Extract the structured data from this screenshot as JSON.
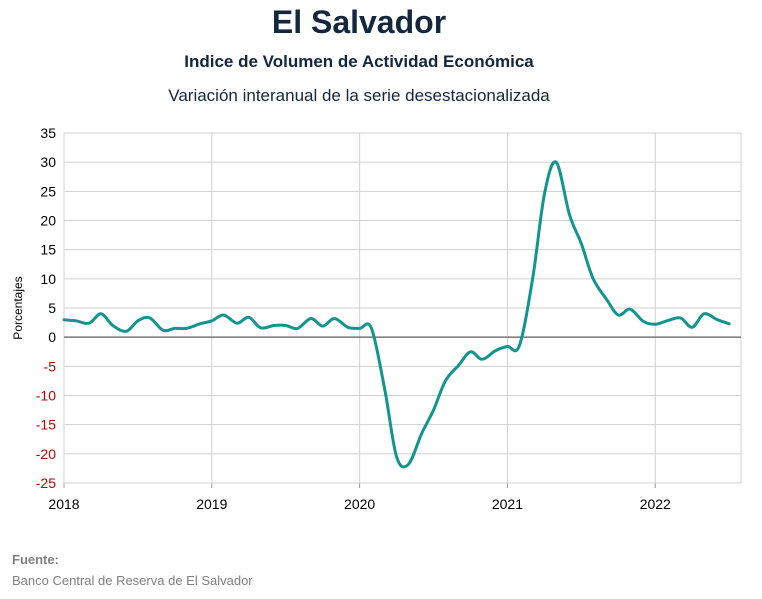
{
  "chart_data": {
    "type": "line",
    "title": "El Salvador",
    "subtitle": "Indice de Volumen de  Actividad Económica",
    "subtitle2": "Variación interanual de la serie desestacionalizada",
    "ylabel": "Porcentajes",
    "xlabel": "",
    "ylim": [
      -25,
      35
    ],
    "yticks": [
      35,
      30,
      25,
      20,
      15,
      10,
      5,
      0,
      -5,
      -10,
      -15,
      -20,
      -25
    ],
    "xticks": [
      "2018",
      "2019",
      "2020",
      "2021",
      "2022"
    ],
    "xlim": [
      2018,
      2022.58
    ],
    "grid": true,
    "line_color": "#13958f",
    "negative_tick_color": "#c00000",
    "series": [
      {
        "x": [
          2018.0,
          2018.08,
          2018.17,
          2018.25,
          2018.33,
          2018.42,
          2018.5,
          2018.58,
          2018.67,
          2018.75,
          2018.83,
          2018.92,
          2019.0,
          2019.08,
          2019.17,
          2019.25,
          2019.33,
          2019.42,
          2019.5,
          2019.58,
          2019.67,
          2019.75,
          2019.83,
          2019.92,
          2020.0,
          2020.08,
          2020.17,
          2020.25,
          2020.33,
          2020.42,
          2020.5,
          2020.58,
          2020.67,
          2020.75,
          2020.83,
          2020.92,
          2021.0,
          2021.08,
          2021.17,
          2021.25,
          2021.33,
          2021.42,
          2021.5,
          2021.58,
          2021.67,
          2021.75,
          2021.83,
          2021.92,
          2022.0,
          2022.08,
          2022.17,
          2022.25,
          2022.33,
          2022.42,
          2022.5
        ],
        "y": [
          3.0,
          2.8,
          2.4,
          4.0,
          2.0,
          1.0,
          2.8,
          3.3,
          1.2,
          1.5,
          1.5,
          2.3,
          2.8,
          3.8,
          2.4,
          3.4,
          1.6,
          2.0,
          2.0,
          1.5,
          3.2,
          1.9,
          3.2,
          1.7,
          1.5,
          1.5,
          -9.0,
          -20.5,
          -21.8,
          -16.5,
          -12.5,
          -7.5,
          -4.8,
          -2.5,
          -3.8,
          -2.3,
          -1.6,
          -1.5,
          10.0,
          24.5,
          30.0,
          21.0,
          16.0,
          10.0,
          6.5,
          3.8,
          4.8,
          2.7,
          2.2,
          2.8,
          3.3,
          1.7,
          4.0,
          3.0,
          2.3
        ]
      }
    ]
  },
  "source": {
    "label": "Fuente:",
    "text": "Banco Central de Reserva de El Salvador"
  }
}
